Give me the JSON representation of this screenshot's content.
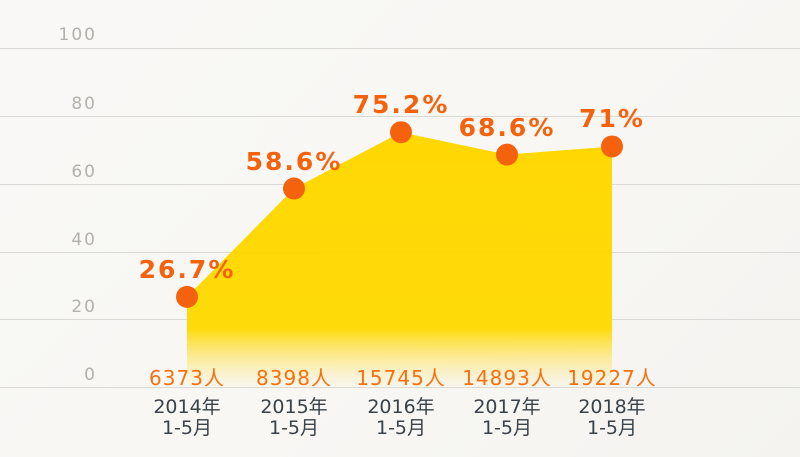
{
  "colors": {
    "accent_orange": "#f5620e",
    "count_orange": "#f7700f",
    "area_yellow": "#ffd701",
    "grid_line": "#dbd9d5",
    "tick_text": "#b3b1ac",
    "category_text": "#3a424a",
    "background": "#f8f7f4"
  },
  "y_axis": {
    "ticks": [
      "100",
      "80",
      "60",
      "40",
      "20",
      "0"
    ]
  },
  "x_axis": {
    "labels": [
      {
        "line1": "2014年",
        "line2": "1-5月"
      },
      {
        "line1": "2015年",
        "line2": "1-5月"
      },
      {
        "line1": "2016年",
        "line2": "1-5月"
      },
      {
        "line1": "2017年",
        "line2": "1-5月"
      },
      {
        "line1": "2018年",
        "line2": "1-5月"
      }
    ]
  },
  "chart_data": {
    "type": "area",
    "categories": [
      "2014年 1-5月",
      "2015年 1-5月",
      "2016年 1-5月",
      "2017年 1-5月",
      "2018年 1-5月"
    ],
    "series": [
      {
        "name": "percentage",
        "values": [
          26.7,
          58.6,
          75.2,
          68.6,
          71
        ],
        "labels": [
          "26.7%",
          "58.6%",
          "75.2%",
          "68.6%",
          "71%"
        ]
      },
      {
        "name": "people-count",
        "values": [
          6373,
          8398,
          15745,
          14893,
          19227
        ],
        "labels": [
          "6373人",
          "8398人",
          "15745人",
          "14893人",
          "19227人"
        ]
      }
    ],
    "title": "",
    "xlabel": "",
    "ylabel": "",
    "ylim": [
      0,
      100
    ],
    "grid": true,
    "legend_position": "none",
    "marker_color": "#f5620e",
    "fill": "yellow gradient fading to transparent at bottom"
  }
}
